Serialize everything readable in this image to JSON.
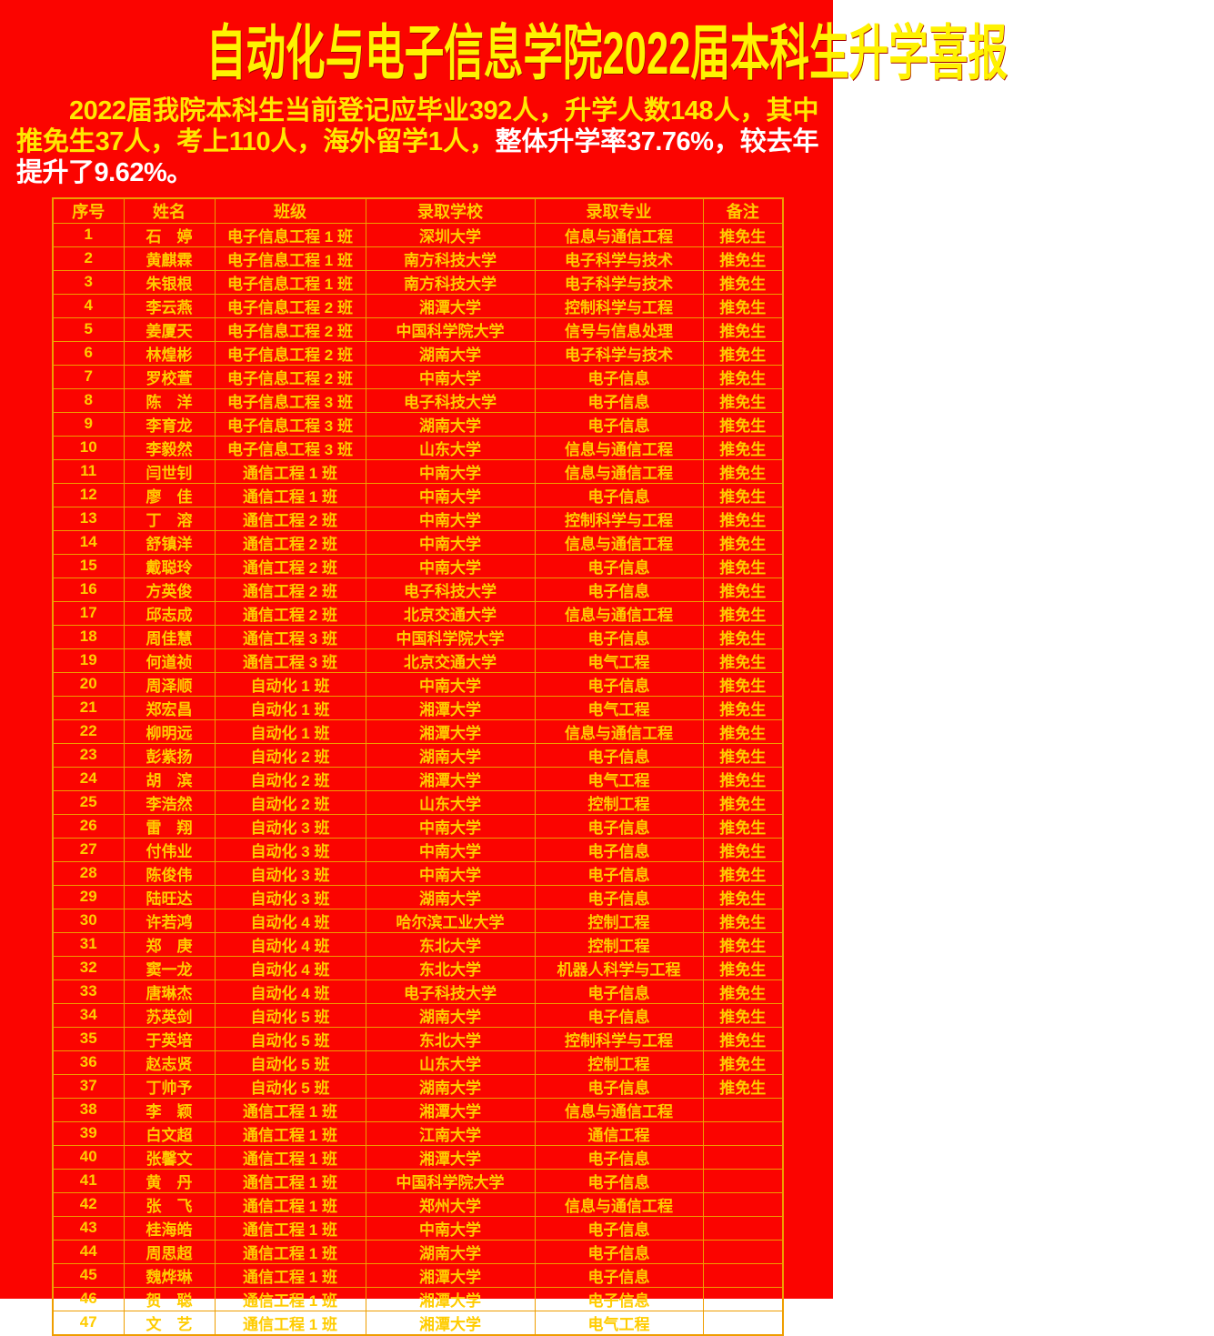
{
  "title": "自动化与电子信息学院2022届本科生升学喜报",
  "summary": {
    "lead": "2022届我院本科生当前登记应毕业392人，升学人数148人，其中推免生37人，考上110人，海外留学1人，",
    "highlight": "整体升学率37.76%，较去年提升了9.62%。"
  },
  "stats": {
    "expected_graduates": 392,
    "advancing_total": 148,
    "recommended_exempt": 37,
    "exam_admitted": 110,
    "overseas": 1,
    "advancement_rate_percent": 37.76,
    "rate_increase_percent": 9.62
  },
  "colors": {
    "background": "#fb0400",
    "title_text": "#fff200",
    "summary_yellow": "#ffe800",
    "summary_white": "#ffffff",
    "table_text": "#ffcc00",
    "table_border": "#ef9e00"
  },
  "table": {
    "headers": [
      "序号",
      "姓名",
      "班级",
      "录取学校",
      "录取专业",
      "备注"
    ],
    "centered_major_rows": [
      1
    ],
    "rows": [
      [
        1,
        "石　婷",
        "电子信息工程 1 班",
        "深圳大学",
        "信息与通信工程",
        "推免生"
      ],
      [
        2,
        "黄麒霖",
        "电子信息工程 1 班",
        "南方科技大学",
        "电子科学与技术",
        "推免生"
      ],
      [
        3,
        "朱银根",
        "电子信息工程 1 班",
        "南方科技大学",
        "电子科学与技术",
        "推免生"
      ],
      [
        4,
        "李云燕",
        "电子信息工程 2 班",
        "湘潭大学",
        "控制科学与工程",
        "推免生"
      ],
      [
        5,
        "姜厦天",
        "电子信息工程 2 班",
        "中国科学院大学",
        "信号与信息处理",
        "推免生"
      ],
      [
        6,
        "林煌彬",
        "电子信息工程 2 班",
        "湖南大学",
        "电子科学与技术",
        "推免生"
      ],
      [
        7,
        "罗校萱",
        "电子信息工程 2 班",
        "中南大学",
        "电子信息",
        "推免生"
      ],
      [
        8,
        "陈　洋",
        "电子信息工程 3 班",
        "电子科技大学",
        "电子信息",
        "推免生"
      ],
      [
        9,
        "李育龙",
        "电子信息工程 3 班",
        "湖南大学",
        "电子信息",
        "推免生"
      ],
      [
        10,
        "李毅然",
        "电子信息工程 3 班",
        "山东大学",
        "信息与通信工程",
        "推免生"
      ],
      [
        11,
        "闫世钊",
        "通信工程 1 班",
        "中南大学",
        "信息与通信工程",
        "推免生"
      ],
      [
        12,
        "廖　佳",
        "通信工程 1 班",
        "中南大学",
        "电子信息",
        "推免生"
      ],
      [
        13,
        "丁　溶",
        "通信工程 2 班",
        "中南大学",
        "控制科学与工程",
        "推免生"
      ],
      [
        14,
        "舒镇洋",
        "通信工程 2 班",
        "中南大学",
        "信息与通信工程",
        "推免生"
      ],
      [
        15,
        "戴聪玲",
        "通信工程 2 班",
        "中南大学",
        "电子信息",
        "推免生"
      ],
      [
        16,
        "方英俊",
        "通信工程 2 班",
        "电子科技大学",
        "电子信息",
        "推免生"
      ],
      [
        17,
        "邱志成",
        "通信工程 2 班",
        "北京交通大学",
        "信息与通信工程",
        "推免生"
      ],
      [
        18,
        "周佳慧",
        "通信工程 3 班",
        "中国科学院大学",
        "电子信息",
        "推免生"
      ],
      [
        19,
        "何道祯",
        "通信工程 3 班",
        "北京交通大学",
        "电气工程",
        "推免生"
      ],
      [
        20,
        "周泽顺",
        "自动化 1 班",
        "中南大学",
        "电子信息",
        "推免生"
      ],
      [
        21,
        "郑宏昌",
        "自动化 1 班",
        "湘潭大学",
        "电气工程",
        "推免生"
      ],
      [
        22,
        "柳明远",
        "自动化 1 班",
        "湘潭大学",
        "信息与通信工程",
        "推免生"
      ],
      [
        23,
        "彭紫扬",
        "自动化 2 班",
        "湖南大学",
        "电子信息",
        "推免生"
      ],
      [
        24,
        "胡　滨",
        "自动化 2 班",
        "湘潭大学",
        "电气工程",
        "推免生"
      ],
      [
        25,
        "李浩然",
        "自动化 2 班",
        "山东大学",
        "控制工程",
        "推免生"
      ],
      [
        26,
        "雷　翔",
        "自动化 3 班",
        "中南大学",
        "电子信息",
        "推免生"
      ],
      [
        27,
        "付伟业",
        "自动化 3 班",
        "中南大学",
        "电子信息",
        "推免生"
      ],
      [
        28,
        "陈俊伟",
        "自动化 3 班",
        "中南大学",
        "电子信息",
        "推免生"
      ],
      [
        29,
        "陆旺达",
        "自动化 3 班",
        "湖南大学",
        "电子信息",
        "推免生"
      ],
      [
        30,
        "许若鸿",
        "自动化 4 班",
        "哈尔滨工业大学",
        "控制工程",
        "推免生"
      ],
      [
        31,
        "郑　庚",
        "自动化 4 班",
        "东北大学",
        "控制工程",
        "推免生"
      ],
      [
        32,
        "窦一龙",
        "自动化 4 班",
        "东北大学",
        "机器人科学与工程",
        "推免生"
      ],
      [
        33,
        "唐琳杰",
        "自动化 4 班",
        "电子科技大学",
        "电子信息",
        "推免生"
      ],
      [
        34,
        "苏英剑",
        "自动化 5 班",
        "湖南大学",
        "电子信息",
        "推免生"
      ],
      [
        35,
        "于英培",
        "自动化 5 班",
        "东北大学",
        "控制科学与工程",
        "推免生"
      ],
      [
        36,
        "赵志贤",
        "自动化 5 班",
        "山东大学",
        "控制工程",
        "推免生"
      ],
      [
        37,
        "丁帅予",
        "自动化 5 班",
        "湖南大学",
        "电子信息",
        "推免生"
      ],
      [
        38,
        "李　颖",
        "通信工程 1 班",
        "湘潭大学",
        "信息与通信工程",
        ""
      ],
      [
        39,
        "白文超",
        "通信工程 1 班",
        "江南大学",
        "通信工程",
        ""
      ],
      [
        40,
        "张馨文",
        "通信工程 1 班",
        "湘潭大学",
        "电子信息",
        ""
      ],
      [
        41,
        "黄　丹",
        "通信工程 1 班",
        "中国科学院大学",
        "电子信息",
        ""
      ],
      [
        42,
        "张　飞",
        "通信工程 1 班",
        "郑州大学",
        "信息与通信工程",
        ""
      ],
      [
        43,
        "桂海皓",
        "通信工程 1 班",
        "中南大学",
        "电子信息",
        ""
      ],
      [
        44,
        "周思超",
        "通信工程 1 班",
        "湖南大学",
        "电子信息",
        ""
      ],
      [
        45,
        "魏烨琳",
        "通信工程 1 班",
        "湘潭大学",
        "电子信息",
        ""
      ],
      [
        46,
        "贺　聪",
        "通信工程 1 班",
        "湘潭大学",
        "电子信息",
        ""
      ],
      [
        47,
        "文　艺",
        "通信工程 1 班",
        "湘潭大学",
        "电气工程",
        ""
      ]
    ]
  }
}
